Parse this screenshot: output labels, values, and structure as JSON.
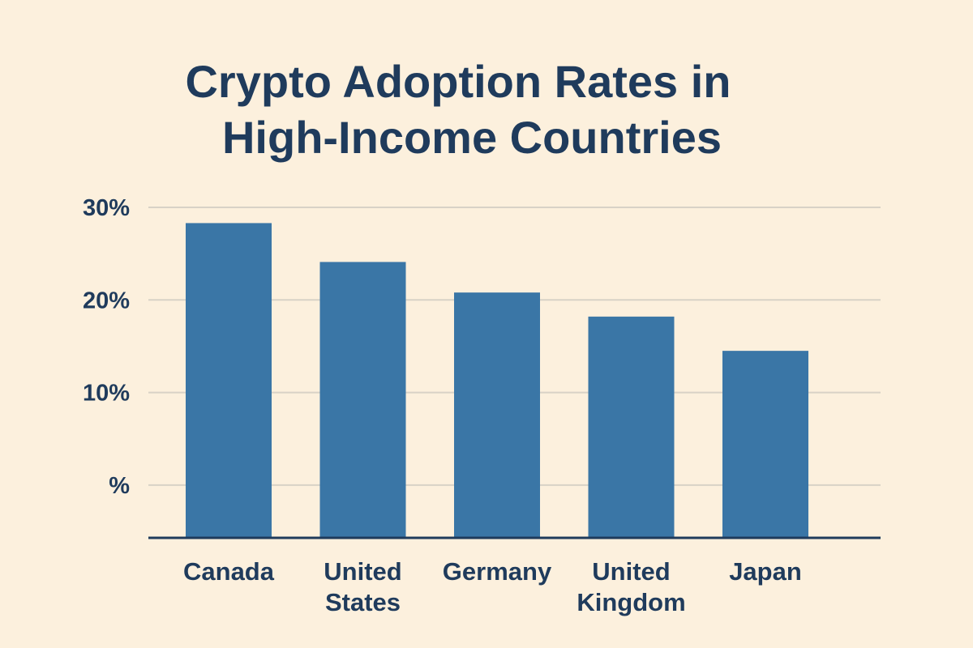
{
  "chart_data": {
    "type": "bar",
    "title": [
      "Crypto Adoption Rates in",
      "High-Income Countries"
    ],
    "categories": [
      [
        "Canada"
      ],
      [
        "United",
        "States"
      ],
      [
        "Germany"
      ],
      [
        "United",
        "Kingdom"
      ],
      [
        "Japan"
      ]
    ],
    "values": [
      28.3,
      24.1,
      20.8,
      18.2,
      14.5
    ],
    "y_ticks": [
      {
        "value": 0,
        "label": "%"
      },
      {
        "value": 10,
        "label": "10%"
      },
      {
        "value": 20,
        "label": "20%"
      },
      {
        "value": 30,
        "label": "30%"
      }
    ],
    "ylim": [
      -5.7,
      30
    ],
    "grid": true,
    "legend": "none",
    "xlabel": "",
    "ylabel": "",
    "colors": {
      "bar": "#3a76a6",
      "text": "#1f3b5c",
      "grid": "#d8d2c6",
      "background": "#fcf0dd"
    }
  }
}
